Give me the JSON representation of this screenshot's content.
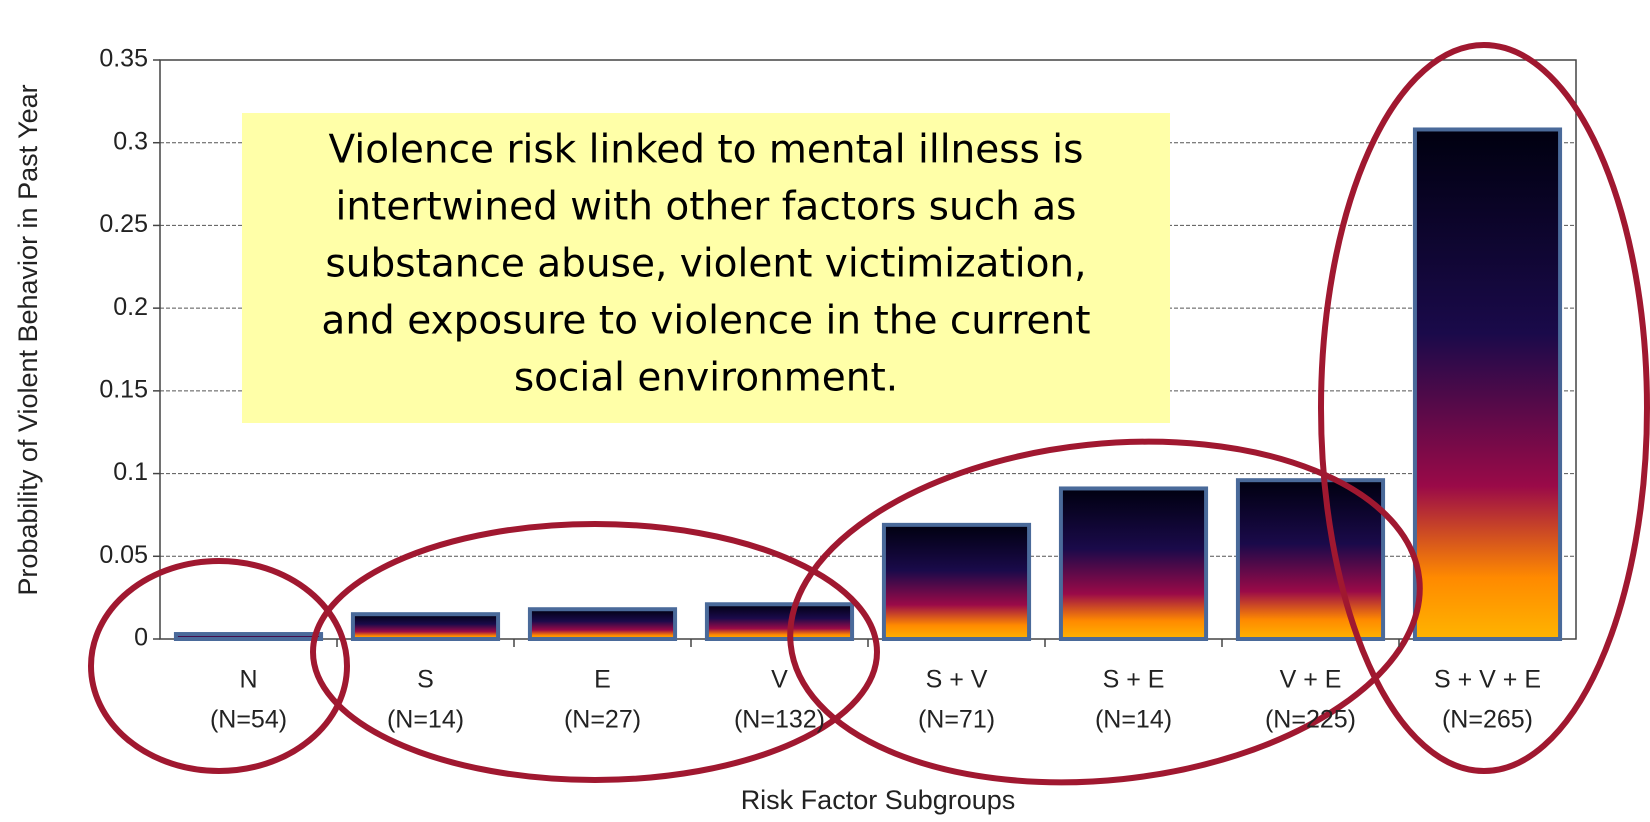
{
  "chart_data": {
    "type": "bar",
    "y_label": "Probability of Violent Behavior in Past Year",
    "x_label": "Risk Factor Subgroups",
    "categories": [
      "N",
      "S",
      "E",
      "V",
      "S + V",
      "S + E",
      "V + E",
      "S + V + E"
    ],
    "sample_sizes": [
      "(N=54)",
      "(N=14)",
      "(N=27)",
      "(N=132)",
      "(N=71)",
      "(N=14)",
      "(N=225)",
      "(N=265)"
    ],
    "values": [
      0.003,
      0.015,
      0.018,
      0.021,
      0.069,
      0.091,
      0.096,
      0.308
    ],
    "ylim": [
      0,
      0.35
    ],
    "yticks": [
      0,
      0.05,
      0.1,
      0.15,
      0.2,
      0.25,
      0.3,
      0.35
    ],
    "grid": true,
    "annotation": [
      "Violence risk linked to mental illness is",
      "intertwined with other factors such as",
      "substance abuse, violent victimization,",
      "and exposure to violence in the current",
      "social environment."
    ]
  }
}
